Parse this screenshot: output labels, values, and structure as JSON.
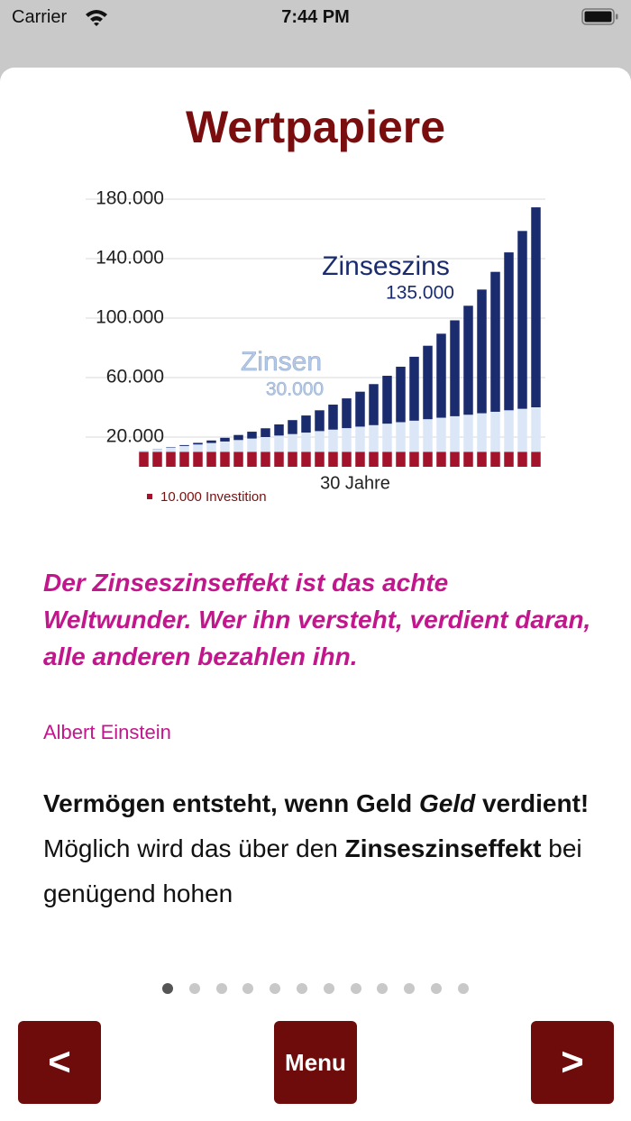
{
  "status_bar": {
    "carrier": "Carrier",
    "time": "7:44 PM"
  },
  "header": {
    "title": "Wertpapiere"
  },
  "chart_data": {
    "type": "bar",
    "stacked": true,
    "categories": [
      null,
      null,
      null,
      null,
      null,
      null,
      null,
      null,
      null,
      null,
      null,
      null,
      null,
      null,
      null,
      null,
      null,
      null,
      null,
      null,
      null,
      null,
      null,
      null,
      null,
      null,
      null,
      null,
      null,
      null
    ],
    "series": [
      {
        "name": "10.000 Investition",
        "color": "#a3142c",
        "values": [
          10000,
          10000,
          10000,
          10000,
          10000,
          10000,
          10000,
          10000,
          10000,
          10000,
          10000,
          10000,
          10000,
          10000,
          10000,
          10000,
          10000,
          10000,
          10000,
          10000,
          10000,
          10000,
          10000,
          10000,
          10000,
          10000,
          10000,
          10000,
          10000,
          10000
        ]
      },
      {
        "name": "Zinsen",
        "color": "#dbe7f7",
        "values": [
          1000,
          2000,
          3000,
          4000,
          5000,
          6000,
          7000,
          8000,
          9000,
          10000,
          11000,
          12000,
          13000,
          14000,
          15000,
          16000,
          17000,
          18000,
          19000,
          20000,
          21000,
          22000,
          23000,
          24000,
          25000,
          26000,
          27000,
          28000,
          29000,
          30000
        ]
      },
      {
        "name": "Zinseszins",
        "color": "#1b2c6e",
        "values": [
          0,
          100,
          300,
          600,
          1100,
          1700,
          2500,
          3400,
          4600,
          5900,
          7500,
          9400,
          11500,
          14000,
          16800,
          20000,
          23500,
          27600,
          32200,
          37300,
          43000,
          49400,
          56500,
          64500,
          73300,
          83200,
          94100,
          106200,
          119600,
          134500
        ]
      }
    ],
    "ylim": [
      0,
      190000
    ],
    "yticks": [
      {
        "value": 20000,
        "label": "20.000"
      },
      {
        "value": 60000,
        "label": "60.000"
      },
      {
        "value": 100000,
        "label": "100.000"
      },
      {
        "value": 140000,
        "label": "140.000"
      },
      {
        "value": 180000,
        "label": "180.000"
      }
    ],
    "grid": true,
    "xlabel": "30 Jahre",
    "annotations": [
      "135.000",
      "30.000"
    ]
  },
  "quote": {
    "text": "Der Zinseszinseffekt ist das achte Weltwunder. Wer ihn versteht, verdient daran, alle anderen bezahlen ihn.",
    "author": "Albert Einstein"
  },
  "body": {
    "p1": [
      "Vermögen entsteht, wenn Geld",
      "Geld",
      "verdient!"
    ],
    "p2": [
      "Möglich wird das über den",
      "Zinseszinseffekt",
      "bei genügend hohen"
    ]
  },
  "buttons": {
    "prev": "<",
    "menu": "Menu",
    "next": ">"
  }
}
